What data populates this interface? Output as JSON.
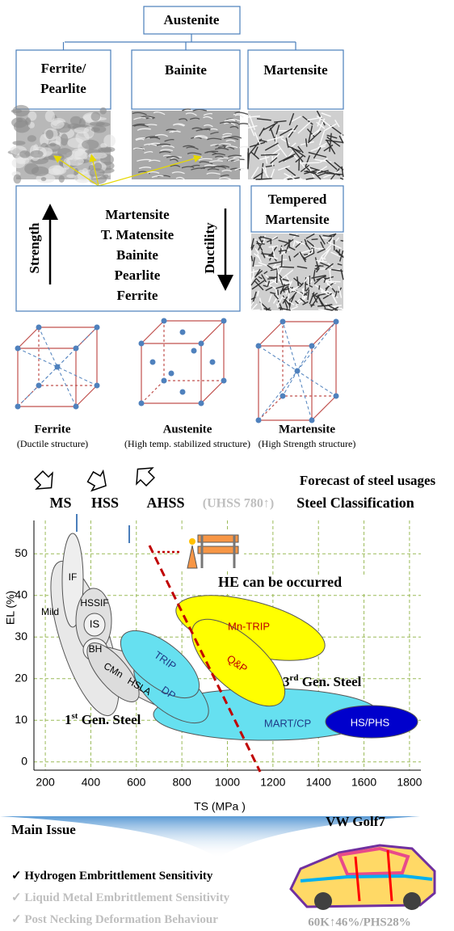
{
  "hierarchy": {
    "root": "Austenite",
    "branches": [
      [
        "Ferrite/",
        "Pearlite"
      ],
      [
        "Bainite"
      ],
      [
        "Martensite"
      ]
    ],
    "tempered": [
      "Tempered",
      "Martensite"
    ]
  },
  "strength_box": {
    "left_arrow": "Strength",
    "right_arrow": "Ductility",
    "order": [
      "Martensite",
      "T. Matensite",
      "Bainite",
      "Pearlite",
      "Ferrite"
    ]
  },
  "structures": [
    {
      "name": "Ferrite",
      "note": "(Ductile structure)"
    },
    {
      "name": "Austenite",
      "note": "(High temp. stabilized structure)"
    },
    {
      "name": "Martensite",
      "note": "(High Strength structure)"
    }
  ],
  "classification": {
    "forecast": "Forecast of steel usages",
    "labels": [
      "MS",
      "HSS",
      "AHSS"
    ],
    "uhss": "(UHSS 780↑)",
    "title": "Steel Classification"
  },
  "chart": {
    "xlabel": "TS (MPa )",
    "ylabel": "EL (%)",
    "xlim": [
      150,
      1850
    ],
    "ylim": [
      -2,
      58
    ],
    "xticks": [
      200,
      400,
      600,
      800,
      1000,
      1200,
      1400,
      1600,
      1800
    ],
    "yticks": [
      0,
      10,
      20,
      30,
      40,
      50
    ],
    "grid": true,
    "regions": [
      "Mild",
      "IF",
      "HSSIF",
      "IS",
      "BH",
      "HSLA",
      "CMn",
      "MART/CP",
      "DP",
      "TRIP",
      "Mn-TRIP",
      "Q&P",
      "HS/PHS"
    ],
    "annotations": {
      "he": "HE  can be occurred",
      "gen3": [
        "3",
        "rd",
        " Gen. Steel"
      ],
      "gen1": [
        "1",
        "st",
        " Gen. Steel"
      ]
    }
  },
  "issues": {
    "title": "Main Issue",
    "check": "✓",
    "items": [
      "Hydrogen Embrittlement Sensitivity",
      "Liquid Metal Embrittlement Sensitivity",
      "Post Necking Deformation Behaviour"
    ]
  },
  "car": {
    "title": "VW Golf7",
    "stats": "60K↑46%/PHS28%"
  }
}
